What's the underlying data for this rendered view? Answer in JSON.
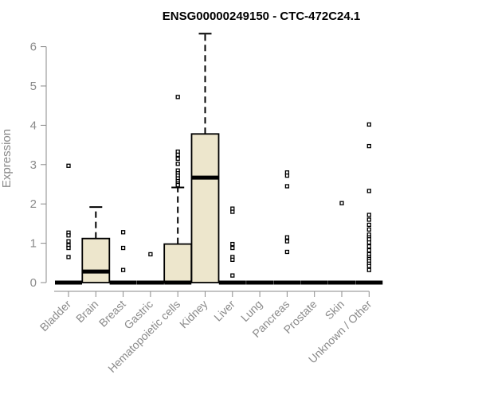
{
  "chart_data": {
    "type": "box",
    "title": "ENSG00000249150 - CTC-472C24.1",
    "xlabel": "",
    "ylabel": "Expression",
    "ylim": [
      0,
      6.3
    ],
    "yticks": [
      0,
      1,
      2,
      3,
      4,
      5,
      6
    ],
    "box_fill": "#ede6cc",
    "categories": [
      "Bladder",
      "Brain",
      "Breast",
      "Gastric",
      "Hematopoietic cells",
      "Kidney",
      "Liver",
      "Lung",
      "Pancreas",
      "Prostate",
      "Skin",
      "Unknown / Other"
    ],
    "boxes": [
      {
        "q1": 0,
        "median": 0,
        "q3": 0,
        "whisker_low": 0,
        "whisker_high": 0,
        "outliers": [
          2.97,
          1.27,
          1.2,
          1.05,
          0.95,
          0.88,
          0.65
        ]
      },
      {
        "q1": 0,
        "median": 0.28,
        "q3": 1.12,
        "whisker_low": 0,
        "whisker_high": 1.92,
        "outliers": []
      },
      {
        "q1": 0,
        "median": 0,
        "q3": 0,
        "whisker_low": 0,
        "whisker_high": 0,
        "outliers": [
          1.28,
          0.88,
          0.32
        ]
      },
      {
        "q1": 0,
        "median": 0,
        "q3": 0,
        "whisker_low": 0,
        "whisker_high": 0,
        "outliers": [
          0.72
        ]
      },
      {
        "q1": 0,
        "median": 0,
        "q3": 0.98,
        "whisker_low": 0,
        "whisker_high": 2.42,
        "outliers": [
          4.72,
          3.33,
          3.25,
          3.15,
          3.02,
          2.85,
          2.78,
          2.72,
          2.65,
          2.58,
          2.52,
          2.48
        ]
      },
      {
        "q1": 0,
        "median": 2.67,
        "q3": 3.78,
        "whisker_low": 0,
        "whisker_high": 6.33,
        "outliers": []
      },
      {
        "q1": 0,
        "median": 0,
        "q3": 0,
        "whisker_low": 0,
        "whisker_high": 0,
        "outliers": [
          1.88,
          1.8,
          0.98,
          0.88,
          0.65,
          0.58,
          0.18
        ]
      },
      {
        "q1": 0,
        "median": 0,
        "q3": 0,
        "whisker_low": 0,
        "whisker_high": 0,
        "outliers": []
      },
      {
        "q1": 0,
        "median": 0,
        "q3": 0,
        "whisker_low": 0,
        "whisker_high": 0,
        "outliers": [
          2.8,
          2.72,
          2.45,
          1.15,
          1.05,
          0.78
        ]
      },
      {
        "q1": 0,
        "median": 0,
        "q3": 0,
        "whisker_low": 0,
        "whisker_high": 0,
        "outliers": []
      },
      {
        "q1": 0,
        "median": 0,
        "q3": 0,
        "whisker_low": 0,
        "whisker_high": 0,
        "outliers": [
          2.02
        ]
      },
      {
        "q1": 0,
        "median": 0,
        "q3": 0,
        "whisker_low": 0,
        "whisker_high": 0,
        "outliers": [
          4.02,
          3.47,
          2.33,
          1.72,
          1.6,
          1.47,
          1.35,
          1.22,
          1.15,
          1.1,
          1.02,
          0.92,
          0.82,
          0.72,
          0.65,
          0.6,
          0.55,
          0.48,
          0.42,
          0.32
        ]
      }
    ]
  }
}
